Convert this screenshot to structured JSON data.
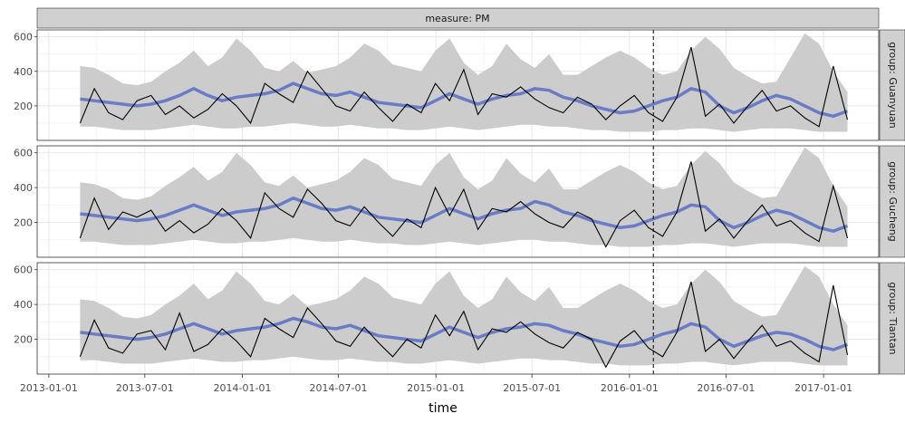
{
  "chart_data": {
    "type": "line",
    "facet_title": "measure: PM",
    "xlabel": "time",
    "ylabel": "",
    "x_ticks": [
      "2013-01-01",
      "2013-07-01",
      "2014-01-01",
      "2014-07-01",
      "2015-01-01",
      "2015-07-01",
      "2016-01-01",
      "2016-07-01",
      "2017-01-01"
    ],
    "y_ticks": [
      200,
      400,
      600
    ],
    "xlim": [
      "2012-12-10",
      "2017-04-15"
    ],
    "ylim": [
      0,
      640
    ],
    "vline_date": "2016-02-15",
    "grid": true,
    "colors": {
      "observed": "#000000",
      "forecast": "#6a7cc6",
      "interval": "#cccccc",
      "strip": "#d0d0d0"
    },
    "panels": [
      {
        "label": "group: Guanyuan",
        "interval_upper": [
          430,
          420,
          380,
          330,
          320,
          340,
          400,
          450,
          520,
          430,
          480,
          590,
          520,
          420,
          400,
          460,
          390,
          410,
          430,
          480,
          560,
          520,
          440,
          420,
          400,
          520,
          590,
          450,
          380,
          430,
          560,
          470,
          420,
          500,
          380,
          380,
          430,
          480,
          520,
          480,
          420,
          380,
          400,
          520,
          600,
          530,
          420,
          370,
          330,
          340,
          480,
          620,
          560,
          400,
          280
        ],
        "forecast_mean": [
          240,
          230,
          220,
          210,
          200,
          210,
          230,
          260,
          300,
          260,
          230,
          250,
          260,
          270,
          290,
          330,
          300,
          270,
          260,
          280,
          250,
          220,
          210,
          200,
          190,
          230,
          270,
          240,
          210,
          240,
          260,
          270,
          300,
          290,
          250,
          230,
          200,
          180,
          160,
          170,
          200,
          230,
          250,
          300,
          280,
          200,
          160,
          190,
          230,
          260,
          240,
          200,
          160,
          140,
          170
        ],
        "interval_lower": [
          80,
          80,
          70,
          60,
          60,
          60,
          70,
          80,
          90,
          80,
          70,
          70,
          80,
          80,
          90,
          100,
          90,
          80,
          80,
          90,
          80,
          70,
          70,
          60,
          60,
          70,
          80,
          70,
          60,
          70,
          80,
          90,
          90,
          80,
          80,
          70,
          60,
          60,
          50,
          50,
          50,
          60,
          60,
          70,
          70,
          60,
          50,
          60,
          70,
          70,
          70,
          60,
          50,
          50,
          50
        ],
        "observed": [
          100,
          300,
          160,
          120,
          230,
          260,
          150,
          200,
          130,
          180,
          270,
          200,
          100,
          330,
          270,
          220,
          400,
          300,
          200,
          170,
          280,
          190,
          110,
          210,
          160,
          330,
          230,
          410,
          150,
          270,
          250,
          310,
          240,
          190,
          160,
          250,
          210,
          120,
          200,
          260,
          160,
          110,
          250,
          540,
          140,
          210,
          100,
          200,
          290,
          170,
          200,
          130,
          80,
          430,
          120
        ]
      },
      {
        "label": "group: Gucheng",
        "interval_upper": [
          430,
          420,
          390,
          340,
          330,
          350,
          410,
          460,
          520,
          440,
          490,
          600,
          530,
          430,
          410,
          470,
          400,
          420,
          440,
          490,
          570,
          530,
          450,
          430,
          410,
          530,
          600,
          460,
          390,
          440,
          570,
          480,
          430,
          510,
          390,
          390,
          440,
          490,
          530,
          490,
          430,
          390,
          410,
          530,
          610,
          540,
          430,
          380,
          340,
          350,
          490,
          630,
          570,
          410,
          290
        ],
        "forecast_mean": [
          250,
          240,
          230,
          220,
          210,
          220,
          240,
          270,
          300,
          270,
          240,
          260,
          270,
          280,
          300,
          340,
          310,
          280,
          270,
          290,
          260,
          230,
          220,
          210,
          200,
          240,
          280,
          250,
          220,
          250,
          270,
          280,
          320,
          300,
          260,
          240,
          210,
          190,
          170,
          180,
          210,
          240,
          260,
          300,
          290,
          210,
          170,
          200,
          240,
          270,
          250,
          210,
          170,
          150,
          180
        ],
        "interval_lower": [
          90,
          90,
          80,
          70,
          70,
          70,
          80,
          90,
          100,
          90,
          80,
          80,
          90,
          90,
          100,
          110,
          100,
          90,
          90,
          100,
          90,
          80,
          80,
          70,
          70,
          80,
          90,
          80,
          70,
          80,
          90,
          100,
          100,
          90,
          90,
          80,
          70,
          70,
          60,
          60,
          60,
          70,
          70,
          80,
          80,
          70,
          60,
          70,
          80,
          80,
          80,
          70,
          60,
          60,
          60
        ],
        "observed": [
          110,
          340,
          160,
          260,
          230,
          270,
          150,
          210,
          140,
          190,
          280,
          210,
          110,
          370,
          280,
          230,
          390,
          310,
          210,
          180,
          290,
          200,
          120,
          220,
          170,
          400,
          240,
          390,
          160,
          280,
          260,
          320,
          250,
          200,
          170,
          260,
          220,
          60,
          210,
          270,
          170,
          120,
          260,
          550,
          150,
          220,
          110,
          210,
          300,
          180,
          210,
          140,
          90,
          410,
          110
        ]
      },
      {
        "label": "group: Tiantan",
        "interval_upper": [
          430,
          420,
          380,
          330,
          320,
          340,
          400,
          450,
          520,
          430,
          480,
          590,
          520,
          420,
          400,
          460,
          390,
          410,
          430,
          480,
          560,
          520,
          440,
          420,
          400,
          520,
          590,
          450,
          380,
          430,
          560,
          470,
          420,
          500,
          380,
          380,
          430,
          480,
          520,
          480,
          420,
          380,
          400,
          520,
          600,
          530,
          420,
          370,
          330,
          340,
          480,
          620,
          560,
          400,
          280
        ],
        "forecast_mean": [
          240,
          230,
          220,
          210,
          200,
          210,
          230,
          260,
          290,
          260,
          230,
          250,
          260,
          270,
          290,
          320,
          300,
          270,
          260,
          280,
          250,
          220,
          210,
          200,
          190,
          230,
          270,
          240,
          210,
          240,
          260,
          270,
          290,
          280,
          250,
          230,
          200,
          180,
          160,
          170,
          200,
          230,
          250,
          290,
          270,
          200,
          160,
          190,
          220,
          240,
          230,
          200,
          160,
          140,
          170
        ],
        "interval_lower": [
          80,
          80,
          70,
          60,
          60,
          60,
          70,
          80,
          90,
          80,
          70,
          70,
          80,
          80,
          90,
          100,
          90,
          80,
          80,
          90,
          80,
          70,
          70,
          60,
          60,
          70,
          80,
          70,
          60,
          70,
          80,
          90,
          90,
          80,
          80,
          70,
          60,
          60,
          50,
          50,
          50,
          60,
          60,
          70,
          70,
          60,
          50,
          60,
          70,
          70,
          70,
          60,
          50,
          50,
          50
        ],
        "observed": [
          100,
          310,
          150,
          120,
          230,
          250,
          140,
          350,
          130,
          170,
          260,
          190,
          100,
          320,
          260,
          210,
          380,
          290,
          190,
          160,
          270,
          180,
          100,
          200,
          150,
          340,
          220,
          360,
          140,
          260,
          240,
          300,
          230,
          180,
          150,
          240,
          200,
          40,
          190,
          250,
          150,
          100,
          240,
          530,
          130,
          200,
          90,
          190,
          280,
          160,
          190,
          120,
          70,
          510,
          110
        ]
      }
    ]
  }
}
